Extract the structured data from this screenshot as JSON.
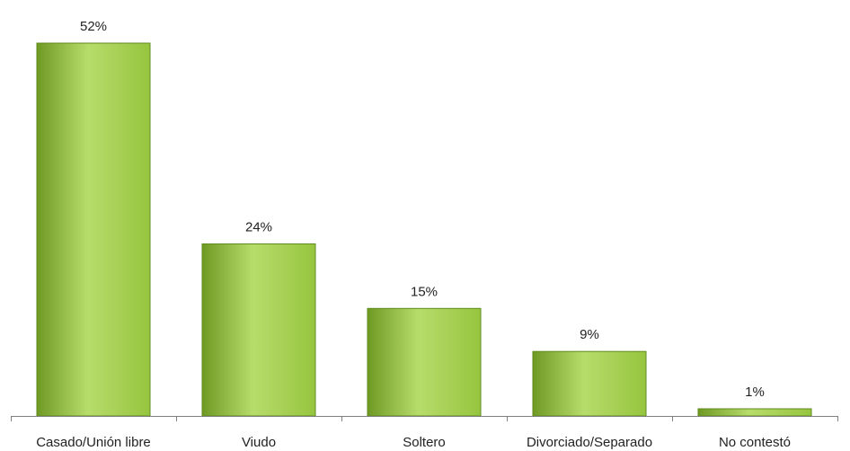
{
  "chart_data": {
    "type": "bar",
    "categories": [
      "Casado/Unión libre",
      "Viudo",
      "Soltero",
      "Divorciado/Separado",
      "No contestó"
    ],
    "values": [
      52,
      24,
      15,
      9,
      1
    ],
    "data_labels": [
      "52%",
      "24%",
      "15%",
      "9%",
      "1%"
    ],
    "unit": "%",
    "title": "",
    "xlabel": "",
    "ylabel": "",
    "ylim": [
      0,
      55
    ],
    "grid": false,
    "legend": "none",
    "colors": {
      "bar_fill_light": "#b7dc6b",
      "bar_fill_mid": "#96c53f",
      "bar_fill_dark": "#6e9a24",
      "bar_stroke": "#5f8a1c",
      "axis": "#7f7f7f",
      "text": "#222222"
    }
  }
}
